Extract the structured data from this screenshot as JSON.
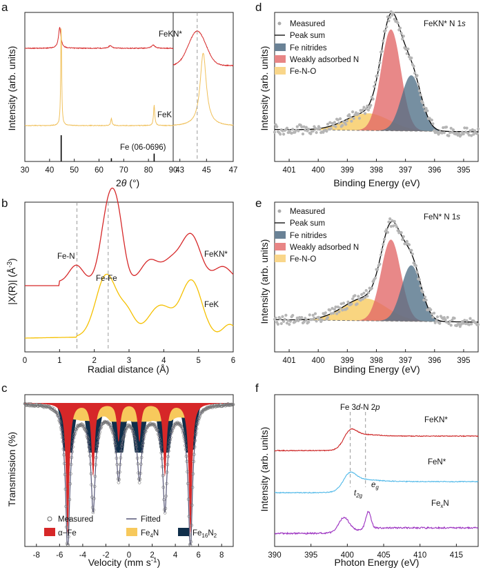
{
  "chart_data": [
    {
      "panel": "a",
      "type": "line",
      "title": "",
      "xlabel": "2θ (°)",
      "ylabel": "Intensity (arb. units)",
      "xlim_left": [
        30,
        90
      ],
      "xlim_right": [
        42.5,
        47
      ],
      "xticks_left": [
        "30",
        "40",
        "50",
        "60",
        "70",
        "80",
        "90"
      ],
      "xticks_right": [
        "43",
        "45",
        "47"
      ],
      "series": [
        {
          "name": "FeKN*",
          "color": "#d62728",
          "peaks": [
            [
              44.1,
              14
            ],
            [
              64.5,
              3
            ],
            [
              81.9,
              4
            ]
          ],
          "offset": 100
        },
        {
          "name": "FeK",
          "color": "#f0c05a",
          "peaks": [
            [
              44.7,
              100
            ],
            [
              65.0,
              8
            ],
            [
              82.3,
              20
            ]
          ],
          "offset": 0
        }
      ],
      "reference": {
        "label": "Fe (06-0696)",
        "lines": [
          44.7,
          65.0,
          82.3
        ],
        "heights": [
          1,
          0.12,
          0.3
        ]
      },
      "dashed_line_x": 44.3
    },
    {
      "panel": "b",
      "type": "line",
      "xlabel": "Radial distance (Å)",
      "ylabel": "|X(R)| (Å⁻³)",
      "xlim": [
        0,
        6
      ],
      "xticks": [
        "0",
        "1",
        "2",
        "3",
        "4",
        "5",
        "6"
      ],
      "series": [
        {
          "name": "FeKN*",
          "color": "#d62728"
        },
        {
          "name": "FeK",
          "color": "#f5c000"
        }
      ],
      "annotations": [
        "Fe-N",
        "Fe-Fe"
      ],
      "dashed_lines_x": [
        1.5,
        2.4
      ]
    },
    {
      "panel": "c",
      "type": "line",
      "xlabel": "Velocity (mm s⁻¹)",
      "ylabel": "Transmission (%)",
      "xlim": [
        -9,
        9
      ],
      "xticks": [
        "-8",
        "-6",
        "-4",
        "-2",
        "0",
        "2",
        "4",
        "6",
        "8"
      ],
      "sextet_lines": [
        -5.3,
        -3.1,
        -0.9,
        0.9,
        3.1,
        5.3
      ],
      "legend": [
        "Measured",
        "Fitted",
        "α−Fe",
        "Fe₄N",
        "Fe₁₆N₂"
      ],
      "colors": {
        "alpha_fe": "#d62728",
        "fe4n": "#f7c95c",
        "fe16n2": "#0f2e4a",
        "fitted": "#555577"
      }
    },
    {
      "panel": "d",
      "type": "area",
      "title": "FeKN* N 1s",
      "xlabel": "Binding Energy (eV)",
      "ylabel": "Intensity (arb. units)",
      "xlim": [
        401.5,
        394.5
      ],
      "xticks": [
        "401",
        "400",
        "399",
        "398",
        "397",
        "396",
        "395"
      ],
      "components": [
        {
          "name": "Fe nitrides",
          "center": 396.8,
          "height": 0.55,
          "color": "#4f6f86"
        },
        {
          "name": "Weakly adsorbed N",
          "center": 397.5,
          "height": 1.0,
          "color": "#e06666"
        },
        {
          "name": "Fe-N-O",
          "center": 398.3,
          "height": 0.17,
          "color": "#f7c95c"
        }
      ],
      "legend": [
        "Measured",
        "Peak sum",
        "Fe nitrides",
        "Weakly adsorbed N",
        "Fe-N-O"
      ]
    },
    {
      "panel": "e",
      "type": "area",
      "title": "FeN* N 1s",
      "xlabel": "Binding Energy (eV)",
      "ylabel": "Intensity (arb. units)",
      "xlim": [
        401.5,
        394.5
      ],
      "xticks": [
        "401",
        "400",
        "399",
        "398",
        "397",
        "396",
        "395"
      ],
      "components": [
        {
          "name": "Fe nitrides",
          "center": 396.8,
          "height": 0.55,
          "color": "#4f6f86"
        },
        {
          "name": "Weakly adsorbed N",
          "center": 397.5,
          "height": 0.8,
          "color": "#e06666"
        },
        {
          "name": "Fe-N-O",
          "center": 398.4,
          "height": 0.22,
          "color": "#f7c95c"
        }
      ],
      "legend": [
        "Measured",
        "Peak sum",
        "Fe nitrides",
        "Weakly adsorbed N",
        "Fe-N-O"
      ]
    },
    {
      "panel": "f",
      "type": "line",
      "xlabel": "Photon Energy (eV)",
      "ylabel": "Intensity (arb. units)",
      "xlim": [
        390,
        418
      ],
      "xticks": [
        "390",
        "395",
        "400",
        "405",
        "410",
        "415"
      ],
      "series": [
        {
          "name": "FeKN*",
          "color": "#cc2222"
        },
        {
          "name": "FeN*",
          "color": "#4fb8e8"
        },
        {
          "name": "FeₓN",
          "color": "#9b30c0"
        }
      ],
      "dashed_lines_x": [
        400.4,
        402.5
      ],
      "annotations": [
        "Fe 3d-N 2p",
        "t2g",
        "eg"
      ]
    }
  ],
  "labels": {
    "a": "a",
    "b": "b",
    "c": "c",
    "d": "d",
    "e": "e",
    "f": "f",
    "a_xlabel_theta": "θ",
    "a_xlabel_pre": "2",
    "a_xlabel_deg": "(°)",
    "a_ylabel": "Intensity (arb. units)",
    "a_fekn": "FeKN*",
    "a_fek": "FeK",
    "a_ref": "Fe (06-0696)",
    "b_xlabel": "Radial distance (Å)",
    "b_ylabel_pre": "|X(R)| (Å",
    "b_ylabel_sup": "-3",
    "b_ylabel_post": ")",
    "b_fen": "Fe-N",
    "b_fefe": "Fe-Fe",
    "b_fekn": "FeKN*",
    "b_fek": "FeK",
    "c_xlabel_pre": "Velocity (mm s",
    "c_xlabel_sup": "-1",
    "c_xlabel_post": ")",
    "c_ylabel": "Transmission (%)",
    "c_measured": "Measured",
    "c_fitted": "Fitted",
    "c_alpha": "α−Fe",
    "c_fe4n_pre": "Fe",
    "c_fe4n_sub": "4",
    "c_fe4n_post": "N",
    "c_fe16_pre": "Fe",
    "c_fe16_sub1": "16",
    "c_fe16_mid": "N",
    "c_fe16_sub2": "2",
    "d_title_pre": "FeKN* N 1",
    "d_title_s": "s",
    "e_title_pre": "FeN* N 1",
    "e_title_s": "s",
    "de_xlabel": "Binding Energy (eV)",
    "de_ylabel": "Intensity (arb. units)",
    "leg_measured": "Measured",
    "leg_peaksum": "Peak sum",
    "leg_fenitrides": "Fe nitrides",
    "leg_weak": "Weakly adsorbed N",
    "leg_fenO": "Fe-N-O",
    "f_xlabel": "Photon Energy (eV)",
    "f_ylabel": "Intensity (arb. units)",
    "f_top_pre": "Fe 3",
    "f_top_d": "d",
    "f_top_post": "-N 2",
    "f_top_p": "p",
    "f_fekn": "FeKN*",
    "f_fen": "FeN*",
    "f_fexn_pre": "Fe",
    "f_fexn_sub": "x",
    "f_fexn_post": "N",
    "f_t": "t",
    "f_t_sub": "2g",
    "f_e": "e",
    "f_e_sub": "g"
  }
}
